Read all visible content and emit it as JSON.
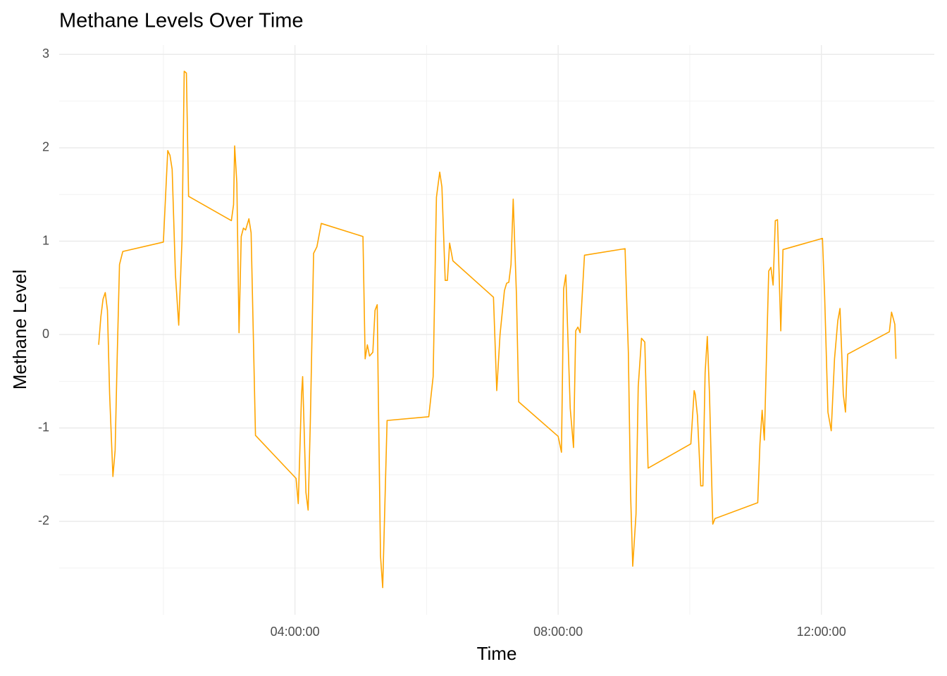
{
  "chart_data": {
    "type": "line",
    "title": "Methane Levels Over Time",
    "x_label": "Time",
    "y_label": "Methane Level",
    "x": [
      "01:01:00",
      "01:03:00",
      "01:05:00",
      "01:07:00",
      "01:09:00",
      "01:11:00",
      "01:14:00",
      "01:16:00",
      "01:18:00",
      "01:20:00",
      "01:23:00",
      "02:00:00",
      "02:04:00",
      "02:06:00",
      "02:08:00",
      "02:11:00",
      "02:14:00",
      "02:17:00",
      "02:19:00",
      "02:21:00",
      "02:23:00",
      "03:02:00",
      "03:04:00",
      "03:05:00",
      "03:07:00",
      "03:09:00",
      "03:11:00",
      "03:13:00",
      "03:15:00",
      "03:18:00",
      "03:20:00",
      "03:24:00",
      "04:01:00",
      "04:03:00",
      "04:06:00",
      "04:07:00",
      "04:10:00",
      "04:12:00",
      "04:14:00",
      "04:17:00",
      "04:20:00",
      "04:24:00",
      "05:02:00",
      "05:04:00",
      "05:06:00",
      "05:08:00",
      "05:11:00",
      "05:13:00",
      "05:15:00",
      "05:16:00",
      "05:18:00",
      "05:20:00",
      "05:24:00",
      "06:02:00",
      "06:06:00",
      "06:09:00",
      "06:12:00",
      "06:14:00",
      "06:17:00",
      "06:19:00",
      "06:21:00",
      "06:24:00",
      "07:01:00",
      "07:04:00",
      "07:07:00",
      "07:11:00",
      "07:13:00",
      "07:15:00",
      "07:17:00",
      "07:19:00",
      "07:22:00",
      "07:24:00",
      "08:00:00",
      "08:03:00",
      "08:05:00",
      "08:07:00",
      "08:11:00",
      "08:14:00",
      "08:16:00",
      "08:18:00",
      "08:20:00",
      "08:24:00",
      "09:01:00",
      "09:04:00",
      "09:06:00",
      "09:08:00",
      "09:11:00",
      "09:13:00",
      "09:16:00",
      "09:19:00",
      "09:22:00",
      "10:01:00",
      "10:04:00",
      "10:05:00",
      "10:07:00",
      "10:10:00",
      "10:12:00",
      "10:14:00",
      "10:16:00",
      "10:18:00",
      "10:21:00",
      "10:23:00",
      "11:02:00",
      "11:04:00",
      "11:06:00",
      "11:08:00",
      "11:12:00",
      "11:14:00",
      "11:16:00",
      "11:18:00",
      "11:20:00",
      "11:23:00",
      "11:25:00",
      "12:01:00",
      "12:03:00",
      "12:06:00",
      "12:09:00",
      "12:12:00",
      "12:15:00",
      "12:17:00",
      "12:20:00",
      "12:22:00",
      "12:24:00",
      "13:02:00",
      "13:04:00",
      "13:07:00",
      "13:08:00"
    ],
    "series": [
      {
        "name": "Methane Level",
        "color": "#FFA500",
        "values": [
          -0.11,
          0.19,
          0.38,
          0.45,
          0.26,
          -0.64,
          -1.52,
          -1.24,
          -0.19,
          0.75,
          0.89,
          0.99,
          1.97,
          1.92,
          1.77,
          0.64,
          0.1,
          1.02,
          2.82,
          2.8,
          1.48,
          1.22,
          1.39,
          2.02,
          1.62,
          0.02,
          1.05,
          1.14,
          1.12,
          1.24,
          1.09,
          -1.08,
          -1.54,
          -1.81,
          -0.64,
          -0.45,
          -1.69,
          -1.88,
          -0.94,
          0.87,
          0.94,
          1.19,
          1.05,
          -0.26,
          -0.11,
          -0.23,
          -0.19,
          0.26,
          0.32,
          -0.64,
          -2.37,
          -2.71,
          -0.92,
          -0.88,
          -0.45,
          1.47,
          1.74,
          1.58,
          0.58,
          0.58,
          0.98,
          0.79,
          0.4,
          -0.6,
          0,
          0.47,
          0.55,
          0.56,
          0.75,
          1.45,
          0.41,
          -0.72,
          -1.09,
          -1.26,
          0.49,
          0.64,
          -0.79,
          -1.21,
          0.04,
          0.08,
          0.02,
          0.85,
          0.92,
          -0.19,
          -1.69,
          -2.48,
          -1.92,
          -0.56,
          -0.04,
          -0.08,
          -1.43,
          -1.17,
          -0.6,
          -0.64,
          -0.87,
          -1.62,
          -1.62,
          -0.41,
          -0.02,
          -0.64,
          -2.03,
          -1.97,
          -1.8,
          -1.17,
          -0.81,
          -1.13,
          0.68,
          0.72,
          0.53,
          1.22,
          1.23,
          0.04,
          0.91,
          1.03,
          0.41,
          -0.83,
          -1.03,
          -0.26,
          0.15,
          0.28,
          -0.64,
          -0.83,
          -0.21,
          0.03,
          0.24,
          0.11,
          -0.26
        ]
      }
    ],
    "xlim": [
      "00:25:00",
      "13:43:00"
    ],
    "xticks": [
      "04:00:00",
      "08:00:00",
      "12:00:00"
    ],
    "ylim": [
      -3.0,
      3.1
    ],
    "yticks": [
      -2,
      -1,
      0,
      1,
      2,
      3
    ],
    "grid": true
  }
}
